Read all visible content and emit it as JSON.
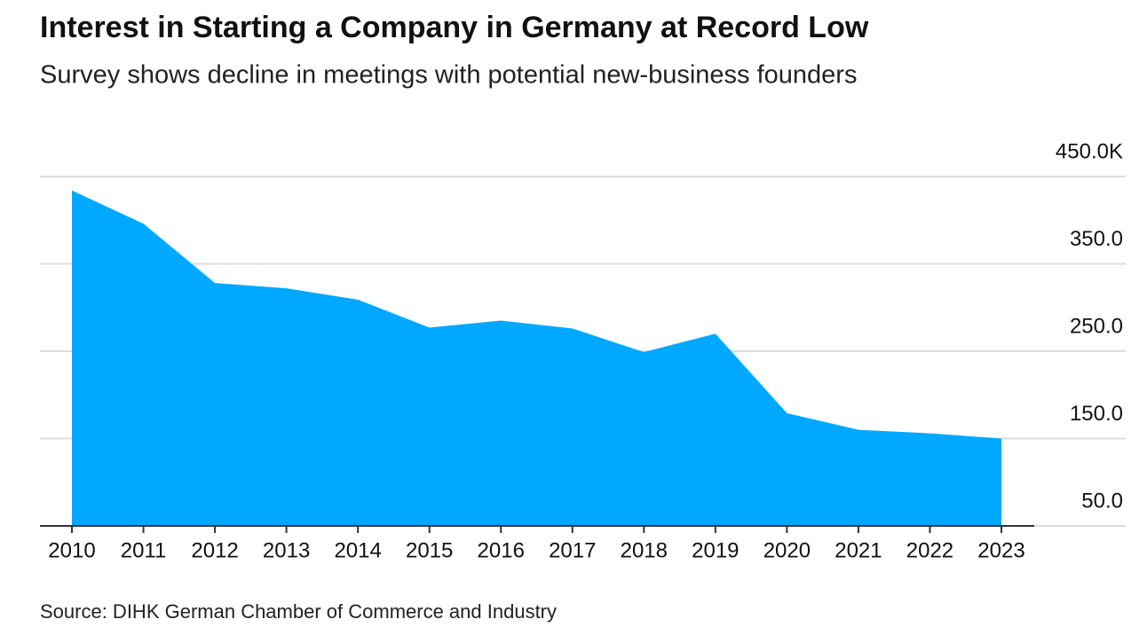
{
  "chart_data": {
    "type": "area",
    "title": "Interest in Starting a Company in Germany at Record Low",
    "subtitle": "Survey shows decline in meetings with potential new-business founders",
    "source": "Source: DIHK German Chamber of Commerce and Industry",
    "x": [
      2010,
      2011,
      2012,
      2013,
      2014,
      2015,
      2016,
      2017,
      2018,
      2019,
      2020,
      2021,
      2022,
      2023
    ],
    "xlim": [
      2010,
      2023
    ],
    "values": [
      434,
      396,
      328,
      322,
      309,
      277,
      285,
      276,
      249,
      270,
      179,
      160,
      156,
      150
    ],
    "color": "#00a8ff",
    "ylim": [
      50,
      450
    ],
    "yticks": [
      {
        "value": 50,
        "label": "50.0"
      },
      {
        "value": 150,
        "label": "150.0"
      },
      {
        "value": 250,
        "label": "250.0"
      },
      {
        "value": 350,
        "label": "350.0"
      },
      {
        "value": 450,
        "label": "450.0K"
      }
    ],
    "grid": true
  }
}
